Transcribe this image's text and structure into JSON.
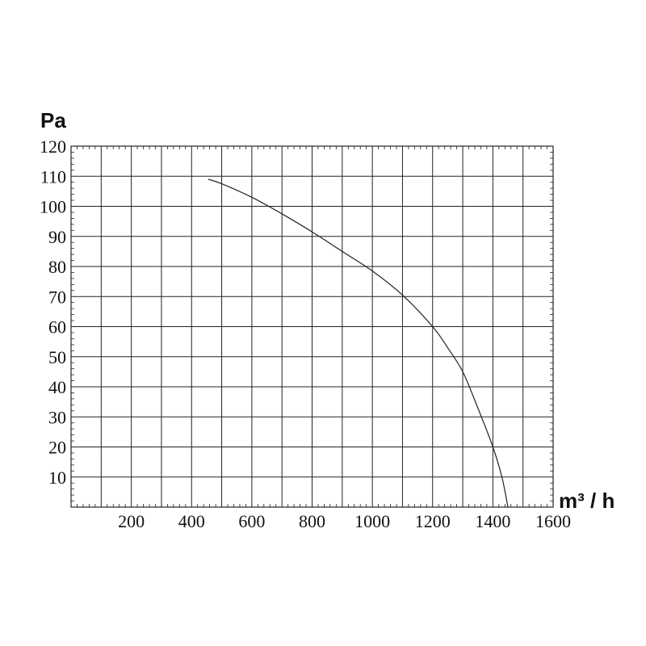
{
  "chart_data": {
    "type": "line",
    "title": "",
    "xlabel": "m³ / h",
    "ylabel": "Pa",
    "xlim": [
      0,
      1600
    ],
    "ylim": [
      0,
      120
    ],
    "x_ticks": [
      200,
      400,
      600,
      800,
      1000,
      1200,
      1400,
      1600
    ],
    "y_ticks": [
      10,
      20,
      30,
      40,
      50,
      60,
      70,
      80,
      90,
      100,
      110,
      120
    ],
    "grid": true,
    "series": [
      {
        "x": [
          455,
          500,
          600,
          700,
          800,
          900,
          1000,
          1100,
          1200,
          1250,
          1300,
          1350,
          1400,
          1430,
          1450
        ],
        "y": [
          109,
          107.5,
          103,
          97.5,
          91.5,
          85,
          78.5,
          70.5,
          60,
          53,
          45,
          33,
          20,
          10,
          0
        ]
      }
    ]
  }
}
